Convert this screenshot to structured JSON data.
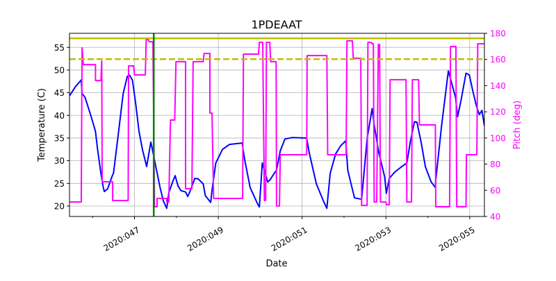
{
  "chart_data": {
    "type": "line",
    "title": "1PDEAAT",
    "xlabel": "Date",
    "ylabel": "Temperature (C)",
    "y2label": "Pitch (deg)",
    "x_unit": "day of year 2020",
    "xlim": [
      45.45,
      55.35
    ],
    "ylim": [
      17.7,
      58.1
    ],
    "y2lim": [
      40,
      180
    ],
    "grid": true,
    "x_ticks": [
      47,
      49,
      51,
      53,
      55
    ],
    "x_tick_labels": [
      "2020:047",
      "2020:049",
      "2020:051",
      "2020:053",
      "2020:055"
    ],
    "x_minor_ticks": [
      46,
      48,
      50,
      52,
      54
    ],
    "y_ticks": [
      20,
      25,
      30,
      35,
      40,
      45,
      50,
      55
    ],
    "y2_ticks": [
      40,
      60,
      80,
      100,
      120,
      140,
      160,
      180
    ],
    "colors": {
      "temperature": "#0000ff",
      "pitch": "#ff00ff",
      "limit": "#bfbf00",
      "marker": "#008000",
      "y2axis": "#ff00ff"
    },
    "hlines": [
      {
        "y": 57.0,
        "style": "solid",
        "color": "#bfbf00"
      },
      {
        "y": 52.4,
        "style": "dashed",
        "color": "#bfbf00"
      }
    ],
    "vlines": [
      {
        "x": 47.46,
        "color": "#008000"
      }
    ],
    "series": [
      {
        "axis": "left",
        "color": "#0000ff",
        "points": [
          [
            45.45,
            44.3
          ],
          [
            45.59,
            46.3
          ],
          [
            45.73,
            47.8
          ],
          [
            45.75,
            44.8
          ],
          [
            45.82,
            44.0
          ],
          [
            45.95,
            40.2
          ],
          [
            46.05,
            37.1
          ],
          [
            46.07,
            36.4
          ],
          [
            46.12,
            32.5
          ],
          [
            46.2,
            27.2
          ],
          [
            46.25,
            24.4
          ],
          [
            46.28,
            23.2
          ],
          [
            46.36,
            23.8
          ],
          [
            46.48,
            26.9
          ],
          [
            46.5,
            27.2
          ],
          [
            46.61,
            35.6
          ],
          [
            46.73,
            44.8
          ],
          [
            46.83,
            48.6
          ],
          [
            46.88,
            48.9
          ],
          [
            46.95,
            47.8
          ],
          [
            47.03,
            42.5
          ],
          [
            47.11,
            36.4
          ],
          [
            47.19,
            32.5
          ],
          [
            47.29,
            28.7
          ],
          [
            47.39,
            34.1
          ],
          [
            47.41,
            33.3
          ],
          [
            47.51,
            28.7
          ],
          [
            47.61,
            24.1
          ],
          [
            47.69,
            21.1
          ],
          [
            47.77,
            19.5
          ],
          [
            47.82,
            22.9
          ],
          [
            47.91,
            25.3
          ],
          [
            47.97,
            26.7
          ],
          [
            48.04,
            24.4
          ],
          [
            48.11,
            23.4
          ],
          [
            48.22,
            23.1
          ],
          [
            48.27,
            22.1
          ],
          [
            48.32,
            23.1
          ],
          [
            48.44,
            26.1
          ],
          [
            48.52,
            26.0
          ],
          [
            48.64,
            24.9
          ],
          [
            48.69,
            22.3
          ],
          [
            48.82,
            20.8
          ],
          [
            48.85,
            23.4
          ],
          [
            48.94,
            29.5
          ],
          [
            49.1,
            32.5
          ],
          [
            49.27,
            33.6
          ],
          [
            49.57,
            33.9
          ],
          [
            49.63,
            30.2
          ],
          [
            49.76,
            24.1
          ],
          [
            49.93,
            20.6
          ],
          [
            49.98,
            19.8
          ],
          [
            50.05,
            29.5
          ],
          [
            50.1,
            27.9
          ],
          [
            50.18,
            25.3
          ],
          [
            50.23,
            25.7
          ],
          [
            50.34,
            27.3
          ],
          [
            50.39,
            27.9
          ],
          [
            50.48,
            32.2
          ],
          [
            50.59,
            34.8
          ],
          [
            50.76,
            35.1
          ],
          [
            51.11,
            35.0
          ],
          [
            51.17,
            31.8
          ],
          [
            51.34,
            24.9
          ],
          [
            51.51,
            21.1
          ],
          [
            51.59,
            19.5
          ],
          [
            51.67,
            27.2
          ],
          [
            51.8,
            31.5
          ],
          [
            51.92,
            33.3
          ],
          [
            52.04,
            34.4
          ],
          [
            52.09,
            27.9
          ],
          [
            52.19,
            24.1
          ],
          [
            52.25,
            21.8
          ],
          [
            52.42,
            21.5
          ],
          [
            52.55,
            34.8
          ],
          [
            52.67,
            41.5
          ],
          [
            52.72,
            37.9
          ],
          [
            52.83,
            31.8
          ],
          [
            52.97,
            26.4
          ],
          [
            53.01,
            22.8
          ],
          [
            53.08,
            26.1
          ],
          [
            53.21,
            27.5
          ],
          [
            53.38,
            28.7
          ],
          [
            53.5,
            29.5
          ],
          [
            53.58,
            34.1
          ],
          [
            53.68,
            38.6
          ],
          [
            53.74,
            38.5
          ],
          [
            53.84,
            34.1
          ],
          [
            53.94,
            28.7
          ],
          [
            54.08,
            25.3
          ],
          [
            54.18,
            24.1
          ],
          [
            54.19,
            25.7
          ],
          [
            54.33,
            37.9
          ],
          [
            54.49,
            49.8
          ],
          [
            54.66,
            44.0
          ],
          [
            54.71,
            39.7
          ],
          [
            54.79,
            43.2
          ],
          [
            54.91,
            49.3
          ],
          [
            54.99,
            48.9
          ],
          [
            55.07,
            45.5
          ],
          [
            55.17,
            41.7
          ],
          [
            55.23,
            40.2
          ],
          [
            55.29,
            41.1
          ],
          [
            55.35,
            37.7
          ]
        ]
      },
      {
        "axis": "right",
        "color": "#ff00ff",
        "points": [
          [
            45.45,
            51.1
          ],
          [
            45.73,
            51.1
          ],
          [
            45.75,
            168.9
          ],
          [
            45.78,
            156.1
          ],
          [
            46.07,
            156.1
          ],
          [
            46.07,
            143.9
          ],
          [
            46.2,
            143.9
          ],
          [
            46.22,
            158.8
          ],
          [
            46.23,
            66.5
          ],
          [
            46.48,
            66.5
          ],
          [
            46.48,
            52.2
          ],
          [
            46.85,
            52.2
          ],
          [
            46.86,
            155.1
          ],
          [
            46.98,
            155.1
          ],
          [
            47.0,
            148.2
          ],
          [
            47.26,
            148.2
          ],
          [
            47.28,
            175.2
          ],
          [
            47.33,
            175.2
          ],
          [
            47.35,
            173.6
          ],
          [
            47.44,
            173.6
          ],
          [
            47.48,
            47.4
          ],
          [
            47.54,
            47.4
          ],
          [
            47.54,
            53.8
          ],
          [
            47.77,
            53.8
          ],
          [
            47.77,
            51.1
          ],
          [
            47.82,
            51.1
          ],
          [
            47.86,
            113.7
          ],
          [
            47.96,
            113.7
          ],
          [
            47.99,
            158.3
          ],
          [
            48.22,
            158.3
          ],
          [
            48.22,
            61.2
          ],
          [
            48.37,
            61.2
          ],
          [
            48.4,
            158.3
          ],
          [
            48.64,
            158.3
          ],
          [
            48.66,
            164.6
          ],
          [
            48.8,
            164.6
          ],
          [
            48.8,
            119.0
          ],
          [
            48.85,
            119.0
          ],
          [
            48.89,
            53.8
          ],
          [
            49.58,
            53.8
          ],
          [
            49.6,
            164.1
          ],
          [
            49.96,
            164.1
          ],
          [
            49.98,
            173.1
          ],
          [
            50.06,
            173.1
          ],
          [
            50.1,
            52.2
          ],
          [
            50.13,
            52.2
          ],
          [
            50.15,
            173.1
          ],
          [
            50.23,
            173.1
          ],
          [
            50.25,
            158.3
          ],
          [
            50.38,
            158.3
          ],
          [
            50.39,
            48.0
          ],
          [
            50.46,
            48.0
          ],
          [
            50.48,
            87.2
          ],
          [
            51.11,
            87.2
          ],
          [
            51.12,
            163.0
          ],
          [
            51.59,
            163.0
          ],
          [
            51.61,
            87.2
          ],
          [
            52.05,
            87.2
          ],
          [
            52.07,
            174.2
          ],
          [
            52.2,
            174.2
          ],
          [
            52.22,
            160.9
          ],
          [
            52.4,
            160.9
          ],
          [
            52.42,
            48.5
          ],
          [
            52.55,
            48.5
          ],
          [
            52.57,
            173.1
          ],
          [
            52.65,
            173.1
          ],
          [
            52.67,
            172.0
          ],
          [
            52.7,
            172.0
          ],
          [
            52.72,
            51.1
          ],
          [
            52.78,
            51.1
          ],
          [
            52.82,
            171.5
          ],
          [
            52.85,
            171.5
          ],
          [
            52.87,
            51.1
          ],
          [
            53.0,
            51.1
          ],
          [
            53.01,
            49.0
          ],
          [
            53.08,
            49.0
          ],
          [
            53.1,
            144.5
          ],
          [
            53.48,
            144.5
          ],
          [
            53.5,
            51.1
          ],
          [
            53.61,
            51.1
          ],
          [
            53.63,
            144.5
          ],
          [
            53.78,
            144.5
          ],
          [
            53.8,
            110.0
          ],
          [
            54.18,
            110.0
          ],
          [
            54.19,
            47.4
          ],
          [
            54.52,
            47.4
          ],
          [
            54.54,
            169.9
          ],
          [
            54.67,
            169.9
          ],
          [
            54.69,
            47.4
          ],
          [
            54.91,
            47.4
          ],
          [
            54.92,
            87.2
          ],
          [
            55.17,
            87.2
          ],
          [
            55.19,
            172.0
          ],
          [
            55.35,
            172.0
          ]
        ]
      }
    ]
  }
}
